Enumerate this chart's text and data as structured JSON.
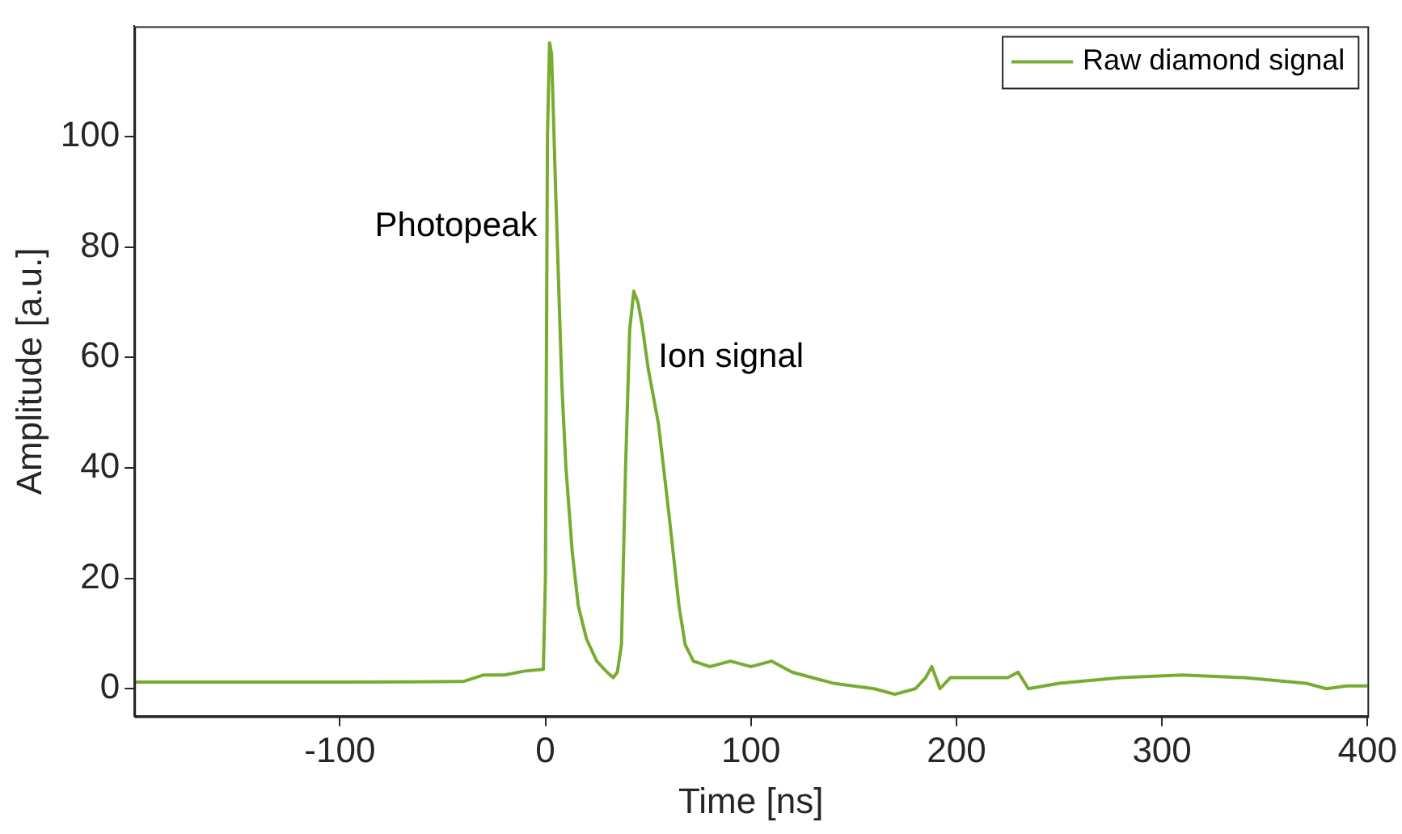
{
  "chart_data": {
    "type": "line",
    "xlabel": "Time [ns]",
    "ylabel": "Amplitude [a.u.]",
    "xlim": [
      -200,
      400
    ],
    "xticks": [
      -100,
      0,
      100,
      200,
      300,
      400
    ],
    "ylim": [
      -5,
      120
    ],
    "yticks": [
      0,
      20,
      40,
      60,
      80,
      100
    ],
    "grid": false,
    "legend": "top right",
    "marker": "none",
    "line_style": "solid",
    "annotations": [
      "Photopeak",
      "Ion signal"
    ],
    "series": [
      {
        "name": "Raw diamond signal",
        "color": "#77ac30",
        "x": [
          -200,
          -100,
          -40,
          -30,
          -20,
          -10,
          -1,
          0,
          1,
          2,
          3,
          5,
          8,
          10,
          13,
          16,
          20,
          25,
          30,
          33,
          35,
          37,
          39,
          41,
          43,
          45,
          47,
          50,
          55,
          60,
          65,
          68,
          72,
          80,
          90,
          100,
          110,
          120,
          140,
          160,
          170,
          180,
          185,
          188,
          192,
          197,
          210,
          225,
          230,
          235,
          250,
          280,
          310,
          340,
          370,
          380,
          390,
          400
        ],
        "values": [
          1.2,
          1.2,
          1.3,
          2.5,
          2.5,
          3.2,
          3.5,
          20,
          100,
          117,
          115,
          90,
          55,
          40,
          25,
          15,
          9,
          5,
          3,
          2,
          3,
          8,
          40,
          65,
          72,
          70,
          66,
          58,
          48,
          32,
          15,
          8,
          5,
          4,
          5,
          4,
          5,
          3,
          1,
          0,
          -1,
          0,
          2,
          4,
          0,
          2,
          2,
          2,
          3,
          0,
          1,
          2,
          2.5,
          2,
          1,
          0,
          0.5,
          0.5
        ]
      }
    ]
  }
}
